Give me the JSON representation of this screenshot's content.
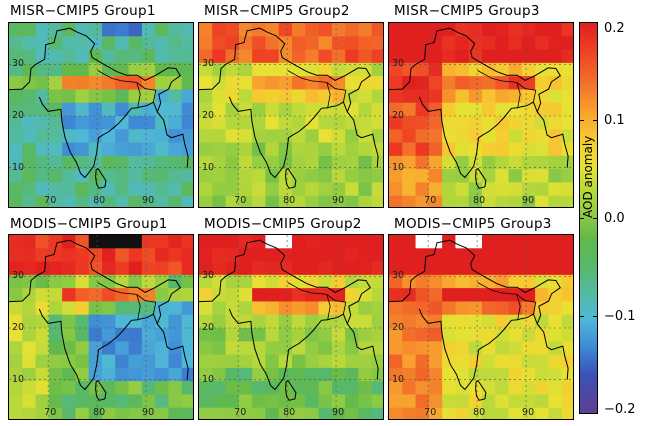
{
  "panels": [
    {
      "title": "MISR−CMIP5 Group1",
      "group": 1,
      "dataset": "MISR"
    },
    {
      "title": "MISR−CMIP5 Group2",
      "group": 2,
      "dataset": "MISR"
    },
    {
      "title": "MISR−CMIP5 Group3",
      "group": 3,
      "dataset": "MISR"
    },
    {
      "title": "MODIS−CMIP5 Group1",
      "group": 1,
      "dataset": "MODIS"
    },
    {
      "title": "MODIS−CMIP5 Group2",
      "group": 2,
      "dataset": "MODIS"
    },
    {
      "title": "MODIS−CMIP5 Group3",
      "group": 3,
      "dataset": "MODIS"
    }
  ],
  "lon_ticks": [
    "70",
    "80",
    "90"
  ],
  "lat_ticks": [
    "30",
    "20",
    "10"
  ],
  "colorbar": {
    "label": "AOD anomaly",
    "ticks": [
      "0.2",
      "0.1",
      "0.0",
      "−0.1",
      "−0.2"
    ],
    "range": [
      -0.2,
      0.2
    ]
  },
  "colors": {
    "strong_positive": "#e31e1e",
    "positive": "#f7a12e",
    "weak_positive": "#e8e133",
    "neutral": "#62b94a",
    "weak_negative": "#53bba7",
    "negative": "#4fb8d7",
    "strong_negative": "#3a4fb5",
    "missing": "#ffffff"
  }
}
